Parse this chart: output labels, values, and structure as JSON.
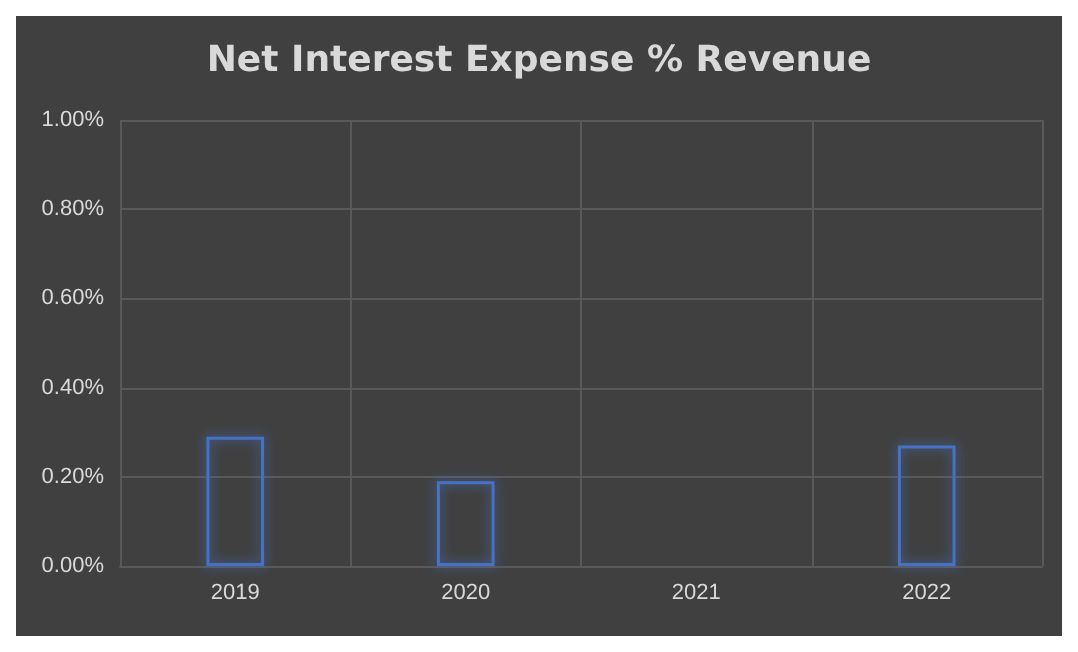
{
  "chart_data": {
    "type": "bar",
    "title": "Net Interest Expense % Revenue",
    "categories": [
      "2019",
      "2020",
      "2021",
      "2022"
    ],
    "values": [
      0.29,
      0.19,
      null,
      0.27
    ],
    "color": "#4472c4",
    "ylim": [
      0,
      1
    ],
    "yticks": [
      {
        "value": 0,
        "label": "0.00%"
      },
      {
        "value": 0.2,
        "label": "0.20%"
      },
      {
        "value": 0.4,
        "label": "0.40%"
      },
      {
        "value": 0.6,
        "label": "0.60%"
      },
      {
        "value": 0.8,
        "label": "0.80%"
      },
      {
        "value": 1,
        "label": "1.00%"
      }
    ],
    "grid": true
  }
}
